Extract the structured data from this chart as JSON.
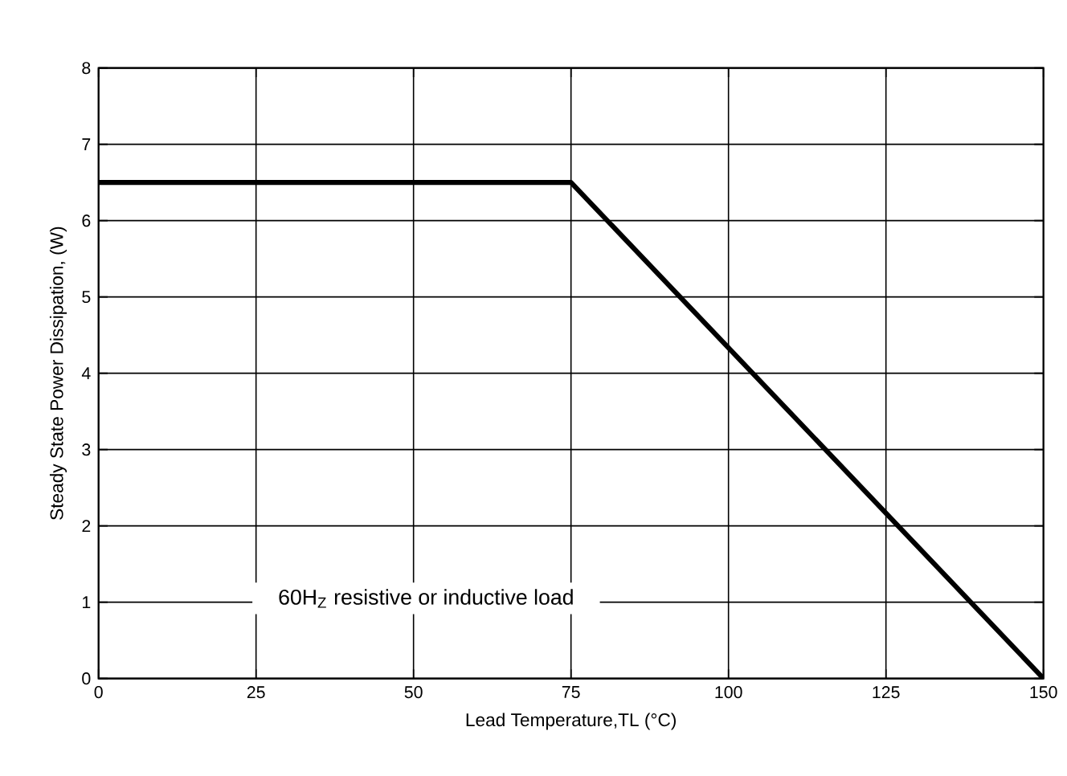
{
  "chart_data": {
    "type": "line",
    "xlabel": "Lead Temperature,TL (°C)",
    "ylabel": "Steady State Power Dissipation, (W)",
    "x": [
      0,
      75,
      150
    ],
    "series": [
      {
        "color": "#000000",
        "values": [
          6.5,
          6.5,
          0
        ]
      }
    ],
    "xlim": [
      0,
      150
    ],
    "xticks": [
      0,
      25,
      50,
      75,
      100,
      125,
      150
    ],
    "ylim": [
      0,
      8
    ],
    "yticks": [
      0,
      1,
      2,
      3,
      4,
      5,
      6,
      7,
      8
    ],
    "grid": true,
    "marker": "none",
    "line_style": "solid",
    "annotations": [
      "60H$_{Z}$ resistive or inductive load"
    ]
  }
}
